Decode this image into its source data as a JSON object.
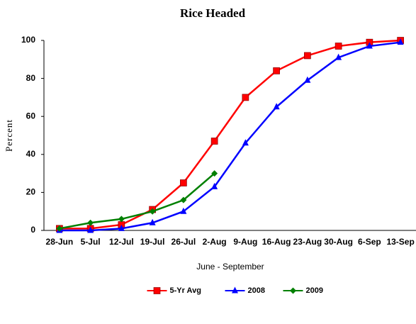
{
  "chart_data": {
    "type": "line",
    "title": "Rice Headed",
    "x_label": "June - September",
    "y_label": "Percent",
    "categories": [
      "28-Jun",
      "5-Jul",
      "12-Jul",
      "19-Jul",
      "26-Jul",
      "2-Aug",
      "9-Aug",
      "16-Aug",
      "23-Aug",
      "30-Aug",
      "6-Sep",
      "13-Sep"
    ],
    "series": [
      {
        "name": "5-Yr Avg",
        "color": "#ff0000",
        "marker": "square",
        "values": [
          1,
          1,
          3,
          11,
          25,
          47,
          70,
          84,
          92,
          97,
          99,
          100
        ]
      },
      {
        "name": "2008",
        "color": "#0000ff",
        "marker": "triangle",
        "values": [
          0,
          0,
          1,
          4,
          10,
          23,
          46,
          65,
          79,
          91,
          97,
          99
        ]
      },
      {
        "name": "2009",
        "color": "#008000",
        "marker": "diamond",
        "values": [
          1,
          4,
          6,
          10,
          16,
          30,
          null,
          null,
          null,
          null,
          null,
          null
        ]
      }
    ],
    "ylim": [
      0,
      100
    ],
    "yticks": [
      0,
      20,
      40,
      60,
      80,
      100
    ],
    "grid": false,
    "legend": "bottom"
  }
}
